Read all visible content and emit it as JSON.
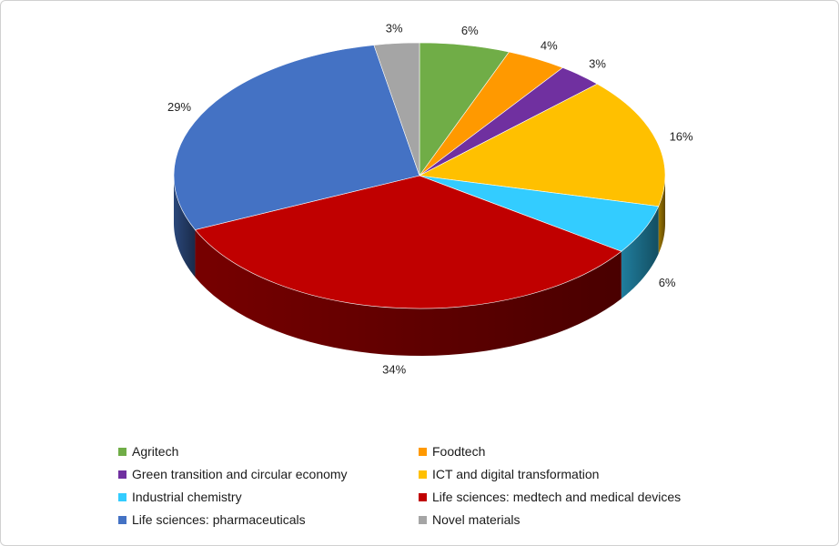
{
  "chart_data": {
    "type": "pie",
    "style": "3d",
    "title": "",
    "legend_position": "bottom",
    "series": [
      {
        "label": "Agritech",
        "value": 6,
        "display": "6%",
        "color": "#70AD47"
      },
      {
        "label": "Foodtech",
        "value": 4,
        "display": "4%",
        "color": "#FF9900"
      },
      {
        "label": "Green transition and circular economy",
        "value": 3,
        "display": "3%",
        "color": "#7030A0"
      },
      {
        "label": "ICT and digital transformation",
        "value": 16,
        "display": "16%",
        "color": "#FFC000"
      },
      {
        "label": "Industrial chemistry",
        "value": 6,
        "display": "6%",
        "color": "#33CCFF"
      },
      {
        "label": "Life sciences: medtech and medical devices",
        "value": 34,
        "display": "34%",
        "color": "#C00000"
      },
      {
        "label": "Life sciences: pharmaceuticals",
        "value": 29,
        "display": "29%",
        "color": "#4472C4"
      },
      {
        "label": "Novel materials",
        "value": 3,
        "display": "3%",
        "color": "#A5A5A5"
      }
    ]
  }
}
